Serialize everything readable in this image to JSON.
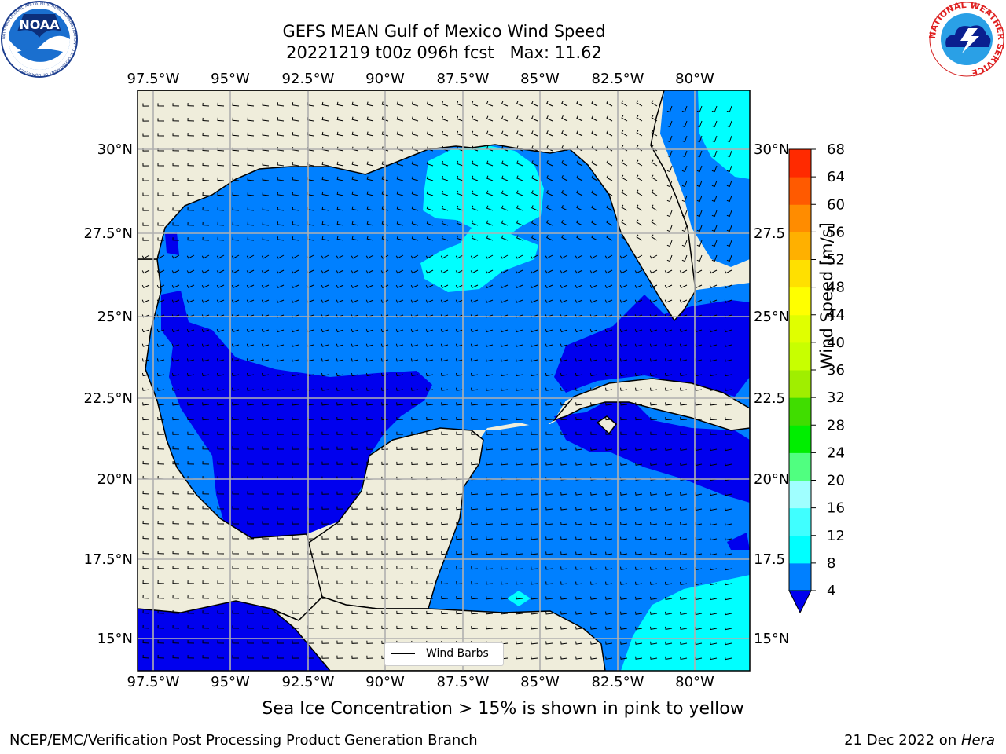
{
  "title": {
    "line1": "GEFS MEAN Gulf of Mexico Wind Speed",
    "line2": "20221219 t00z 096h fcst   Max: 11.62"
  },
  "logos": {
    "noaa_text": "NOAA",
    "noaa_ring": "NATIONAL OCEANIC AND ATMOSPHERIC ADMINISTRATION · U.S. DEPARTMENT OF COMMERCE",
    "nws_ring": "NATIONAL WEATHER SERVICE"
  },
  "map": {
    "lon_ticks": [
      "97.5°W",
      "95°W",
      "92.5°W",
      "90°W",
      "87.5°W",
      "85°W",
      "82.5°W",
      "80°W"
    ],
    "lat_ticks_left": [
      "30°N",
      "27.5°N",
      "25°N",
      "22.5°N",
      "20°N",
      "17.5°N",
      "15°N"
    ],
    "lat_ticks_right": [
      "30°N",
      "27.5",
      "25°N",
      "22.5",
      "20°N",
      "17.5",
      "15°N"
    ],
    "legend_label": "Wind Barbs",
    "colors": {
      "land": "#efeddb",
      "band_4_8": "#0080ff",
      "band_lt_4": "#0000ee",
      "band_8_12": "#00ffff",
      "grid": "#b0b0b0"
    }
  },
  "colorbar": {
    "label": "Wind Speed [m/s]",
    "ticks": [
      "4",
      "8",
      "12",
      "16",
      "20",
      "24",
      "28",
      "32",
      "36",
      "40",
      "44",
      "48",
      "52",
      "56",
      "60",
      "64",
      "68"
    ],
    "colors": [
      "#0080ff",
      "#00ffff",
      "#40ffff",
      "#a0ffff",
      "#50ff80",
      "#00ee00",
      "#40dd00",
      "#a0ee00",
      "#c8ff00",
      "#e0ff00",
      "#ffff00",
      "#ffe000",
      "#ffb000",
      "#ff8c00",
      "#ff5a00",
      "#ff2a00"
    ],
    "under_color": "#0000ee"
  },
  "caption": "Sea Ice Concentration > 15% is shown in pink to yellow",
  "footer": {
    "left": "NCEP/EMC/Verification Post Processing Product Generation Branch",
    "right_date": "21 Dec 2022 on ",
    "right_host": "Hera"
  }
}
